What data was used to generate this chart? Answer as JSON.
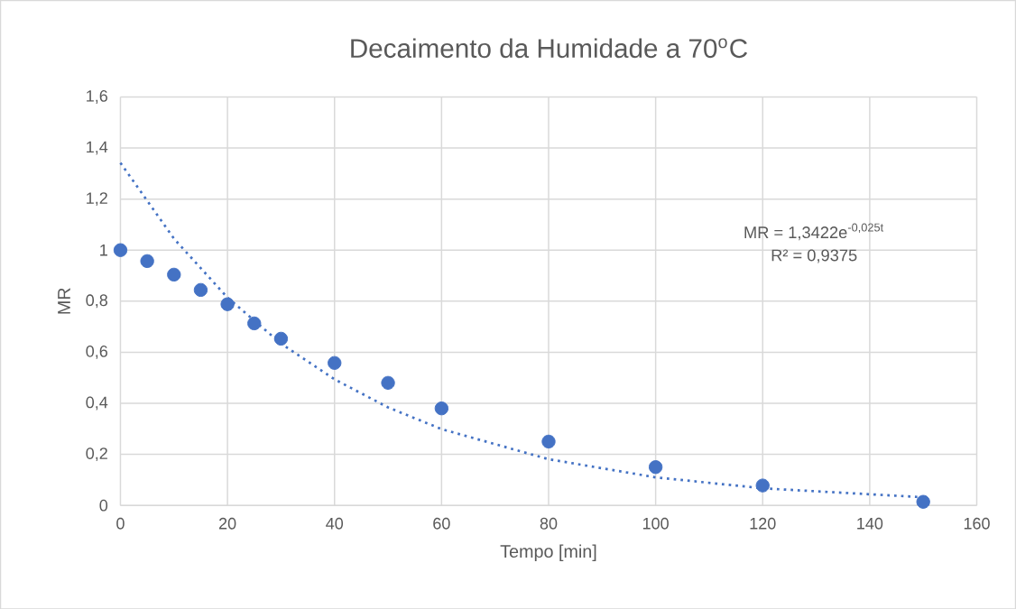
{
  "chart_data": {
    "type": "scatter",
    "title": "Decaimento da Humidade a 70$^{o}$C",
    "xlabel": "Tempo [min]",
    "ylabel": "MR",
    "series": [
      {
        "color": "#4472c4",
        "marker": "circle",
        "x": [
          0,
          5,
          10,
          15,
          20,
          25,
          30,
          40,
          50,
          60,
          80,
          100,
          120,
          150
        ],
        "values": [
          1.0,
          0.957,
          0.904,
          0.844,
          0.788,
          0.713,
          0.653,
          0.558,
          0.48,
          0.38,
          0.25,
          0.15,
          0.078,
          0.014
        ]
      },
      {
        "type": "line",
        "color": "#4472c4",
        "marker": "none",
        "line_style": "dotted",
        "x": [
          0,
          10,
          20,
          30,
          40,
          50,
          60,
          80,
          100,
          120,
          150
        ],
        "values": [
          1.342,
          1.045,
          0.814,
          0.634,
          0.494,
          0.384,
          0.299,
          0.181,
          0.11,
          0.067,
          0.032
        ]
      }
    ],
    "annotations": [
      "MR = 1,3422e$^{-0,025t}$",
      "R² = 0,9375"
    ],
    "xlim": [
      0,
      160
    ],
    "ylim": [
      0,
      1.6
    ],
    "xticks": [
      0,
      20,
      40,
      60,
      80,
      100,
      120,
      140,
      160
    ],
    "yticks": [
      0,
      {
        "value": 0.2,
        "label": "0,2"
      },
      {
        "value": 0.4,
        "label": "0,4"
      },
      {
        "value": 0.6,
        "label": "0,6"
      },
      {
        "value": 0.8,
        "label": "0,8"
      },
      1,
      {
        "value": 1.2,
        "label": "1,2"
      },
      {
        "value": 1.4,
        "label": "1,4"
      },
      {
        "value": 1.6,
        "label": "1,6"
      }
    ],
    "grid": true
  }
}
